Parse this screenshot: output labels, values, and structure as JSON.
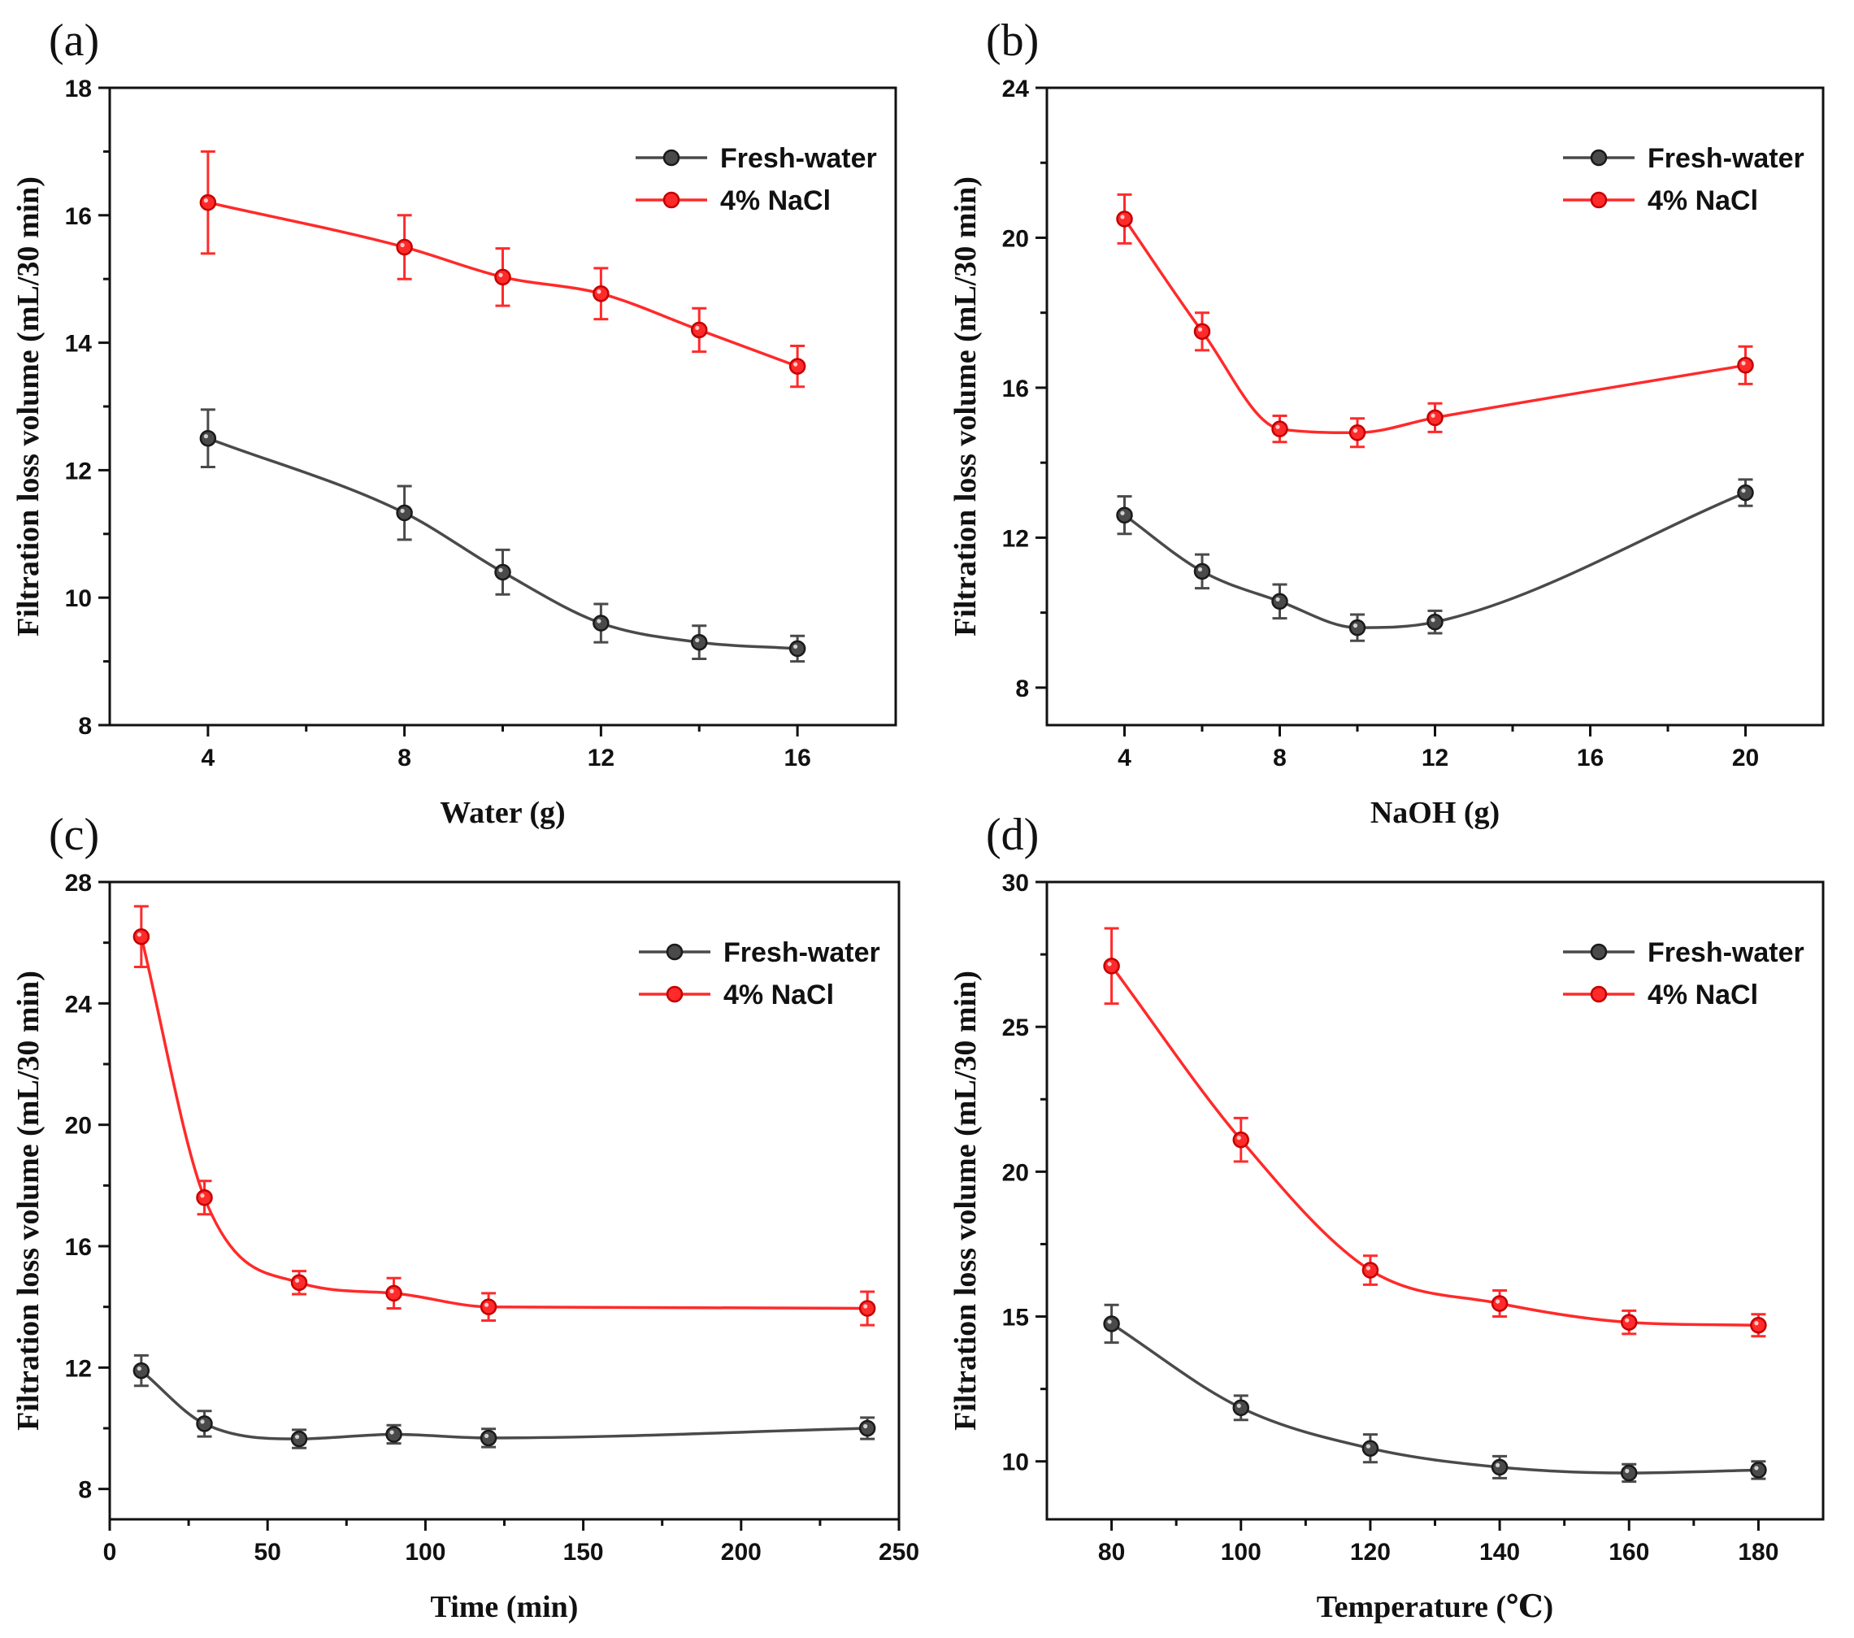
{
  "chart_data": [
    {
      "id": "a",
      "type": "line",
      "panel_label": "(a)",
      "xlabel": "Water (g)",
      "ylabel": "Filtration loss volume (mL/30 min)",
      "xlim": [
        2,
        18
      ],
      "ylim": [
        8,
        18
      ],
      "xticks": [
        4,
        8,
        12,
        16
      ],
      "xtick_labels": [
        "4",
        "8",
        "12",
        "16"
      ],
      "xminor": [
        6,
        10,
        14
      ],
      "yticks": [
        8,
        10,
        12,
        14,
        16,
        18
      ],
      "ytick_labels": [
        "8",
        "10",
        "12",
        "14",
        "16",
        "18"
      ],
      "legend_position": "top-right",
      "series": [
        {
          "name": "Fresh-water",
          "color": "#4a4a4a",
          "x": [
            4,
            8,
            10,
            12,
            14,
            16
          ],
          "y": [
            12.5,
            11.33,
            10.4,
            9.6,
            9.3,
            9.2
          ],
          "err": [
            0.45,
            0.42,
            0.35,
            0.3,
            0.26,
            0.2
          ]
        },
        {
          "name": "4% NaCl",
          "color": "#ff2a2a",
          "x": [
            4,
            8,
            10,
            12,
            14,
            16
          ],
          "y": [
            16.2,
            15.5,
            15.03,
            14.77,
            14.2,
            13.63
          ],
          "err": [
            0.8,
            0.5,
            0.45,
            0.4,
            0.34,
            0.32
          ]
        }
      ]
    },
    {
      "id": "b",
      "type": "line",
      "panel_label": "(b)",
      "xlabel": "NaOH  (g)",
      "ylabel": "Filtration loss volume (mL/30 min)",
      "xlim": [
        2,
        22
      ],
      "ylim": [
        7,
        24
      ],
      "xticks": [
        4,
        8,
        12,
        16,
        20
      ],
      "xtick_labels": [
        "4",
        "8",
        "12",
        "16",
        "20"
      ],
      "xminor": [
        6,
        10,
        14,
        18
      ],
      "yticks": [
        8,
        12,
        16,
        20,
        24
      ],
      "ytick_labels": [
        "8",
        "12",
        "16",
        "20",
        "24"
      ],
      "legend_position": "top-right",
      "series": [
        {
          "name": "Fresh-water",
          "color": "#4a4a4a",
          "x": [
            4,
            6,
            8,
            10,
            12,
            20
          ],
          "y": [
            12.6,
            11.1,
            10.3,
            9.6,
            9.75,
            13.2
          ],
          "err": [
            0.5,
            0.45,
            0.45,
            0.35,
            0.3,
            0.35
          ]
        },
        {
          "name": "4% NaCl",
          "color": "#ff2a2a",
          "x": [
            4,
            6,
            8,
            10,
            12,
            20
          ],
          "y": [
            20.5,
            17.5,
            14.9,
            14.8,
            15.2,
            16.6
          ],
          "err": [
            0.65,
            0.5,
            0.35,
            0.38,
            0.38,
            0.5
          ]
        }
      ]
    },
    {
      "id": "c",
      "type": "line",
      "panel_label": "(c)",
      "xlabel": "Time (min)",
      "ylabel": "Filtration loss volume (mL/30 min)",
      "xlim": [
        0,
        250
      ],
      "ylim": [
        7,
        28
      ],
      "xticks": [
        0,
        50,
        100,
        150,
        200,
        250
      ],
      "xtick_labels": [
        "0",
        "50",
        "100",
        "150",
        "200",
        "250"
      ],
      "xminor": [
        25,
        75,
        125,
        175,
        225
      ],
      "yticks": [
        8,
        12,
        16,
        20,
        24,
        28
      ],
      "ytick_labels": [
        "8",
        "12",
        "16",
        "20",
        "24",
        "28"
      ],
      "legend_position": "top-right",
      "series": [
        {
          "name": "Fresh-water",
          "color": "#4a4a4a",
          "x": [
            10,
            30,
            60,
            90,
            120,
            240
          ],
          "y": [
            11.9,
            10.15,
            9.65,
            9.8,
            9.68,
            10.0
          ],
          "err": [
            0.5,
            0.42,
            0.3,
            0.3,
            0.3,
            0.35
          ]
        },
        {
          "name": "4% NaCl",
          "color": "#ff2a2a",
          "x": [
            10,
            30,
            60,
            90,
            120,
            240
          ],
          "y": [
            26.2,
            17.6,
            14.8,
            14.45,
            14.0,
            13.95
          ],
          "err": [
            1.0,
            0.55,
            0.38,
            0.5,
            0.45,
            0.55
          ]
        }
      ]
    },
    {
      "id": "d",
      "type": "line",
      "panel_label": "(d)",
      "xlabel": "Temperature (℃)",
      "ylabel": "Filtration loss volume (mL/30 min)",
      "xlim": [
        70,
        190
      ],
      "ylim": [
        8,
        30
      ],
      "xticks": [
        80,
        100,
        120,
        140,
        160,
        180
      ],
      "xtick_labels": [
        "80",
        "100",
        "120",
        "140",
        "160",
        "180"
      ],
      "xminor": [
        90,
        110,
        130,
        150,
        170
      ],
      "yticks": [
        10,
        15,
        20,
        25,
        30
      ],
      "ytick_labels": [
        "10",
        "15",
        "20",
        "25",
        "30"
      ],
      "legend_position": "top-right",
      "series": [
        {
          "name": "Fresh-water",
          "color": "#4a4a4a",
          "x": [
            80,
            100,
            120,
            140,
            160,
            180
          ],
          "y": [
            14.75,
            11.85,
            10.45,
            9.8,
            9.6,
            9.7
          ],
          "err": [
            0.65,
            0.42,
            0.48,
            0.38,
            0.3,
            0.3
          ]
        },
        {
          "name": "4% NaCl",
          "color": "#ff2a2a",
          "x": [
            80,
            100,
            120,
            140,
            160,
            180
          ],
          "y": [
            27.1,
            21.1,
            16.6,
            15.45,
            14.8,
            14.7
          ],
          "err": [
            1.3,
            0.75,
            0.5,
            0.45,
            0.4,
            0.38
          ]
        }
      ]
    }
  ]
}
